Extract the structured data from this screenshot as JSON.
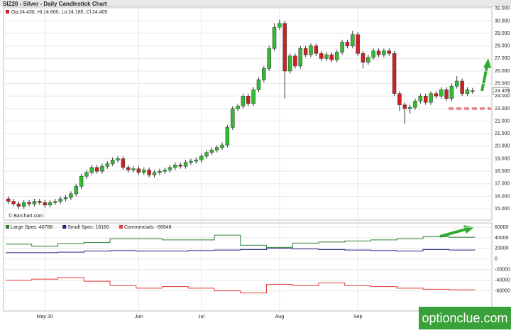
{
  "chart_data": [
    {
      "type": "candlestick",
      "title": "SIZ20 - Silver - Daily Candlestick Chart",
      "ohlc_label": "Op:24.430, Hi:24.660, Lo:24.185, Cl:24.405",
      "source": "© Barchart.com",
      "last_label": "24.405",
      "watermark": "optionclue.com",
      "up_color": "#33bb33",
      "down_color": "#cc2222",
      "categories": [
        null,
        null,
        null,
        null,
        null,
        null,
        null,
        "May 20",
        null,
        null,
        null,
        null,
        null,
        null,
        null,
        null,
        null,
        null,
        null,
        null,
        null,
        null,
        null,
        null,
        null,
        "Jun",
        null,
        null,
        null,
        null,
        null,
        null,
        null,
        null,
        null,
        null,
        null,
        "Jul",
        null,
        null,
        null,
        null,
        null,
        null,
        null,
        null,
        null,
        null,
        null,
        null,
        null,
        null,
        "Aug",
        null,
        null,
        null,
        null,
        null,
        null,
        null,
        null,
        null,
        null,
        null,
        null,
        null,
        null,
        "Sep",
        null,
        null,
        null,
        null,
        null,
        null,
        null,
        null,
        null,
        null,
        null,
        null,
        null,
        null,
        null,
        null,
        null,
        null,
        null,
        null,
        null,
        null
      ],
      "open": [
        15.8,
        15.6,
        15.4,
        15.2,
        15.5,
        15.4,
        15.6,
        15.5,
        15.3,
        15.5,
        15.6,
        15.8,
        15.9,
        16.2,
        16.8,
        17.6,
        17.9,
        18.3,
        18.0,
        18.4,
        18.6,
        18.9,
        19.0,
        18.3,
        18.1,
        18.2,
        17.9,
        18.1,
        17.7,
        17.9,
        18.0,
        18.1,
        18.3,
        18.5,
        18.4,
        18.7,
        18.8,
        18.9,
        19.2,
        19.5,
        19.7,
        19.9,
        20.1,
        21.5,
        23.0,
        23.2,
        24.0,
        23.4,
        24.5,
        25.3,
        26.2,
        27.8,
        29.5,
        29.8,
        26.0,
        27.2,
        26.4,
        27.8,
        27.3,
        28.0,
        27.4,
        27.0,
        27.3,
        26.9,
        27.5,
        28.3,
        28.0,
        28.9,
        27.4,
        26.7,
        27.1,
        27.6,
        27.3,
        27.6,
        27.4,
        24.2,
        23.3,
        23.0,
        23.1,
        23.6,
        24.0,
        23.5,
        24.2,
        24.0,
        24.5,
        23.8,
        24.8,
        25.2,
        24.2,
        24.43
      ],
      "high": [
        16.0,
        15.8,
        15.6,
        15.7,
        15.7,
        15.8,
        15.8,
        15.7,
        15.7,
        15.8,
        16.0,
        16.1,
        16.4,
        17.0,
        17.8,
        18.1,
        18.5,
        18.5,
        18.6,
        18.8,
        19.1,
        19.2,
        19.2,
        18.5,
        18.4,
        18.4,
        18.3,
        18.3,
        18.1,
        18.2,
        18.3,
        18.5,
        18.7,
        18.7,
        18.9,
        19.0,
        19.1,
        19.4,
        19.7,
        19.9,
        20.1,
        20.3,
        21.7,
        23.2,
        23.4,
        24.2,
        24.2,
        24.7,
        25.5,
        26.4,
        28.0,
        29.8,
        30.1,
        30.0,
        27.4,
        27.4,
        28.0,
        28.0,
        28.2,
        28.2,
        27.6,
        27.5,
        27.5,
        27.7,
        28.5,
        28.5,
        29.2,
        29.1,
        27.6,
        27.3,
        27.8,
        27.8,
        27.8,
        27.8,
        27.6,
        24.4,
        23.5,
        23.3,
        23.8,
        24.2,
        24.2,
        24.4,
        24.4,
        24.7,
        24.7,
        25.0,
        25.6,
        25.4,
        24.7,
        24.66
      ],
      "low": [
        15.4,
        15.2,
        15.0,
        15.0,
        15.2,
        15.2,
        15.3,
        15.1,
        15.1,
        15.3,
        15.4,
        15.6,
        15.7,
        16.0,
        16.6,
        17.4,
        17.7,
        17.8,
        17.8,
        18.2,
        18.4,
        18.7,
        18.1,
        17.9,
        17.9,
        17.7,
        17.7,
        17.5,
        17.5,
        17.7,
        17.8,
        17.9,
        18.1,
        18.2,
        18.2,
        18.5,
        18.6,
        18.7,
        19.0,
        19.3,
        19.5,
        19.7,
        19.9,
        21.3,
        22.8,
        23.0,
        23.2,
        23.2,
        24.3,
        25.1,
        26.0,
        27.6,
        29.3,
        23.8,
        25.8,
        26.2,
        26.2,
        27.1,
        27.1,
        27.2,
        26.8,
        26.8,
        26.7,
        26.7,
        27.3,
        27.8,
        27.8,
        27.2,
        26.2,
        26.5,
        26.9,
        27.1,
        27.1,
        27.2,
        24.0,
        22.8,
        21.8,
        22.6,
        22.9,
        23.4,
        23.3,
        23.3,
        23.8,
        23.8,
        23.6,
        23.6,
        24.6,
        24.0,
        24.0,
        24.185
      ],
      "close": [
        15.6,
        15.4,
        15.2,
        15.5,
        15.4,
        15.6,
        15.5,
        15.3,
        15.5,
        15.6,
        15.8,
        15.9,
        16.2,
        16.8,
        17.6,
        17.9,
        18.3,
        18.0,
        18.4,
        18.6,
        18.9,
        19.0,
        18.3,
        18.1,
        18.2,
        17.9,
        18.1,
        17.7,
        17.9,
        18.0,
        18.1,
        18.3,
        18.5,
        18.4,
        18.7,
        18.8,
        18.9,
        19.2,
        19.5,
        19.7,
        19.9,
        20.1,
        21.5,
        23.0,
        23.2,
        24.0,
        23.4,
        24.5,
        25.3,
        26.2,
        27.8,
        29.5,
        29.8,
        26.0,
        27.2,
        26.4,
        27.8,
        27.3,
        28.0,
        27.4,
        27.0,
        27.3,
        26.9,
        27.5,
        28.3,
        28.0,
        28.9,
        27.4,
        26.7,
        27.1,
        27.6,
        27.3,
        27.6,
        27.4,
        24.2,
        23.3,
        23.0,
        23.1,
        23.6,
        24.0,
        23.5,
        24.2,
        24.0,
        24.5,
        23.8,
        24.8,
        25.2,
        24.2,
        24.5,
        24.405
      ],
      "ylim": [
        14.1,
        31.1
      ],
      "yticks": [
        {
          "value": 15,
          "label": "15.000"
        },
        {
          "value": 16,
          "label": "16.000"
        },
        {
          "value": 17,
          "label": "17.000"
        },
        {
          "value": 18,
          "label": "18.000"
        },
        {
          "value": 19,
          "label": "19.000"
        },
        {
          "value": 20,
          "label": "20.000"
        },
        {
          "value": 21,
          "label": "21.000"
        },
        {
          "value": 22,
          "label": "22.000"
        },
        {
          "value": 23,
          "label": "23.000"
        },
        {
          "value": 24,
          "label": "24.000"
        },
        {
          "value": 25,
          "label": "25.000"
        },
        {
          "value": 26,
          "label": "26.000"
        },
        {
          "value": 27,
          "label": "27.000"
        },
        {
          "value": 28,
          "label": "28.000"
        },
        {
          "value": 29,
          "label": "29.000"
        },
        {
          "value": 30,
          "label": "30.000"
        },
        {
          "value": 31,
          "label": "31.000"
        }
      ],
      "grid": true
    },
    {
      "type": "step",
      "series": [
        {
          "name": "Large Spec: 40788",
          "color": "#2e7d32",
          "values": [
            28000,
            24000,
            29000,
            31000,
            38000,
            38000,
            36000,
            36000,
            45000,
            26000,
            22000,
            30000,
            32000,
            34000,
            36000,
            38000,
            42000,
            41000
          ]
        },
        {
          "name": "Small Spec: 16160",
          "color": "#1a237e",
          "values": [
            12000,
            12000,
            13000,
            15000,
            16000,
            15000,
            15000,
            16000,
            17000,
            18000,
            20000,
            19000,
            18000,
            17000,
            16000,
            15000,
            18000,
            17000
          ]
        },
        {
          "name": "Commercials: -56948",
          "color": "#e53935",
          "values": [
            -40000,
            -38000,
            -35000,
            -42000,
            -50000,
            -55000,
            -52000,
            -55000,
            -60000,
            -64000,
            -48000,
            -50000,
            -45000,
            -50000,
            -52000,
            -55000,
            -57000,
            -58000
          ]
        }
      ],
      "ylim": [
        -98000,
        68000
      ],
      "yticks": [
        -60000,
        -40000,
        -20000,
        0,
        20000,
        40000,
        60000
      ],
      "grid": true
    }
  ]
}
